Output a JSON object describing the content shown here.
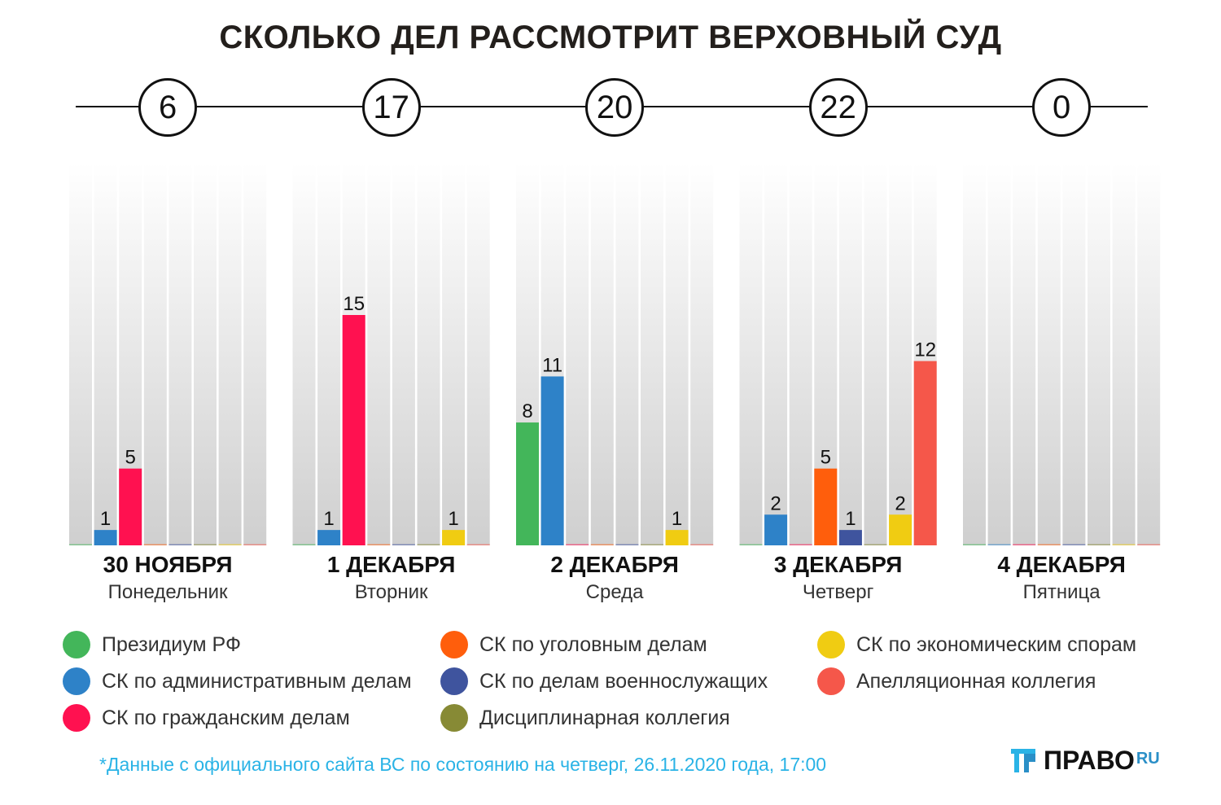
{
  "title": "СКОЛЬКО ДЕЛ РАССМОТРИТ ВЕРХОВНЫЙ СУД",
  "footnote": "*Данные с официального сайта ВС по состоянию на четверг, 26.11.2020 года, 17:00",
  "logo": {
    "text": "ПРАВО",
    "suffix": "RU"
  },
  "colors": {
    "presidium": "#43b65a",
    "admin": "#2e82c8",
    "civil": "#ff1150",
    "criminal": "#ff5e0c",
    "military": "#3f549e",
    "disciplinary": "#878a35",
    "economic": "#f0cc12",
    "appeal": "#f5574a"
  },
  "chart_data": {
    "type": "bar",
    "title": "СКОЛЬКО ДЕЛ РАССМОТРИТ ВЕРХОВНЫЙ СУД",
    "categories": [
      "30 НОЯБРЯ",
      "1 ДЕКАБРЯ",
      "2 ДЕКАБРЯ",
      "3 ДЕКАБРЯ",
      "4 ДЕКАБРЯ"
    ],
    "weekdays": [
      "Понедельник",
      "Вторник",
      "Среда",
      "Четверг",
      "Пятница"
    ],
    "totals": [
      "6",
      "17",
      "20",
      "22",
      "0"
    ],
    "ylim": [
      0,
      15
    ],
    "series": [
      {
        "name": "Президиум РФ",
        "color_key": "presidium",
        "values": [
          0,
          0,
          8,
          0,
          0
        ]
      },
      {
        "name": "СК по административным делам",
        "color_key": "admin",
        "values": [
          1,
          1,
          11,
          2,
          0
        ]
      },
      {
        "name": "СК по гражданским делам",
        "color_key": "civil",
        "values": [
          5,
          15,
          0,
          0,
          0
        ]
      },
      {
        "name": "СК по уголовным делам",
        "color_key": "criminal",
        "values": [
          0,
          0,
          0,
          5,
          0
        ]
      },
      {
        "name": "СК по делам военнослужащих",
        "color_key": "military",
        "values": [
          0,
          0,
          0,
          1,
          0
        ]
      },
      {
        "name": "Дисциплинарная коллегия",
        "color_key": "disciplinary",
        "values": [
          0,
          0,
          0,
          0,
          0
        ]
      },
      {
        "name": "СК по экономическим спорам",
        "color_key": "economic",
        "values": [
          0,
          1,
          1,
          2,
          0
        ]
      },
      {
        "name": "Апелляционная коллегия",
        "color_key": "appeal",
        "values": [
          0,
          0,
          0,
          12,
          0
        ]
      }
    ]
  }
}
